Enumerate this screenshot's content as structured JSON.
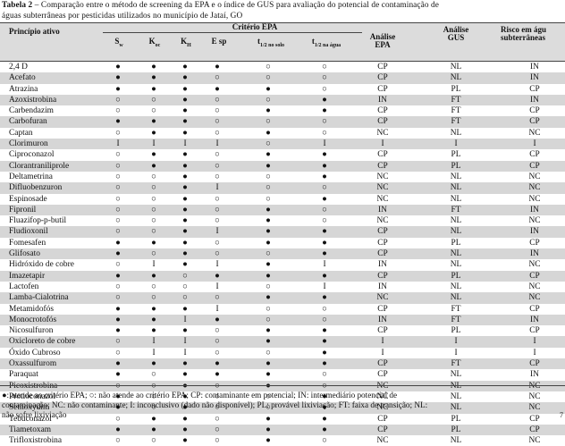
{
  "caption": {
    "label": "Tabela 2",
    "text": " – Comparação entre o método de screening da EPA e o índice de GUS para avaliação do potencial de contaminação de",
    "line2": "águas subterrâneas por pesticidas utilizados no município de Jataí, GO"
  },
  "header": {
    "col0": "Princípio ativo",
    "group": "Critério EPA",
    "sw": "S",
    "sw_sub": "w",
    "koc": "K",
    "koc_sub": "oc",
    "kh": "K",
    "kh_sub": "H",
    "esp": "E sp",
    "t_solo": "t",
    "t_solo_sub": "1/2 no solo",
    "t_agua": "t",
    "t_agua_sub": "1/2 na água",
    "analise_epa_1": "Análise",
    "analise_epa_2": "EPA",
    "analise_gus_1": "Análise",
    "analise_gus_2": "GUS",
    "risco_1": "Risco em águ",
    "risco_2": "subterrâneas"
  },
  "rows": [
    {
      "name": "2,4 D",
      "c": [
        "●",
        "●",
        "●",
        "●",
        "○",
        "○"
      ],
      "epa": "CP",
      "gus": "NL",
      "risco": "IN"
    },
    {
      "name": "Acefato",
      "c": [
        "●",
        "●",
        "●",
        "○",
        "○",
        "○"
      ],
      "epa": "CP",
      "gus": "NL",
      "risco": "IN"
    },
    {
      "name": "Atrazina",
      "c": [
        "●",
        "●",
        "●",
        "●",
        "●",
        "○"
      ],
      "epa": "CP",
      "gus": "PL",
      "risco": "CP"
    },
    {
      "name": "Azoxistrobina",
      "c": [
        "○",
        "○",
        "●",
        "○",
        "○",
        "●"
      ],
      "epa": "IN",
      "gus": "FT",
      "risco": "IN"
    },
    {
      "name": "Carbendazim",
      "c": [
        "○",
        "○",
        "●",
        "○",
        "●",
        "●"
      ],
      "epa": "CP",
      "gus": "FT",
      "risco": "CP"
    },
    {
      "name": "Carbofuran",
      "c": [
        "●",
        "●",
        "●",
        "○",
        "○",
        "○"
      ],
      "epa": "CP",
      "gus": "FT",
      "risco": "CP"
    },
    {
      "name": "Captan",
      "c": [
        "○",
        "●",
        "●",
        "○",
        "●",
        "○"
      ],
      "epa": "NC",
      "gus": "NL",
      "risco": "NC"
    },
    {
      "name": "Clorimuron",
      "c": [
        "I",
        "I",
        "I",
        "I",
        "○",
        "I"
      ],
      "epa": "I",
      "gus": "I",
      "risco": "I"
    },
    {
      "name": "Ciproconazol",
      "c": [
        "○",
        "●",
        "●",
        "○",
        "●",
        "●"
      ],
      "epa": "CP",
      "gus": "PL",
      "risco": "CP"
    },
    {
      "name": "Clorantraniliprole",
      "c": [
        "○",
        "●",
        "●",
        "○",
        "●",
        "●"
      ],
      "epa": "CP",
      "gus": "PL",
      "risco": "CP"
    },
    {
      "name": "Deltametrina",
      "c": [
        "○",
        "○",
        "●",
        "○",
        "○",
        "●"
      ],
      "epa": "NC",
      "gus": "NL",
      "risco": "NC"
    },
    {
      "name": "Difluobenzuron",
      "c": [
        "○",
        "○",
        "●",
        "I",
        "○",
        "○"
      ],
      "epa": "NC",
      "gus": "NL",
      "risco": "NC"
    },
    {
      "name": "Espinosade",
      "c": [
        "○",
        "○",
        "●",
        "○",
        "○",
        "●"
      ],
      "epa": "NC",
      "gus": "NL",
      "risco": "NC"
    },
    {
      "name": "Fipronil",
      "c": [
        "○",
        "○",
        "●",
        "○",
        "●",
        "○"
      ],
      "epa": "IN",
      "gus": "FT",
      "risco": "IN"
    },
    {
      "name": "Fluazifop-p-butil",
      "c": [
        "○",
        "○",
        "●",
        "○",
        "●",
        "○"
      ],
      "epa": "NC",
      "gus": "NL",
      "risco": "NC"
    },
    {
      "name": "Fludioxonil",
      "c": [
        "○",
        "○",
        "●",
        "I",
        "●",
        "●"
      ],
      "epa": "CP",
      "gus": "NL",
      "risco": "IN"
    },
    {
      "name": "Fomesafen",
      "c": [
        "●",
        "●",
        "●",
        "○",
        "●",
        "●"
      ],
      "epa": "CP",
      "gus": "PL",
      "risco": "CP"
    },
    {
      "name": "Glifosato",
      "c": [
        "●",
        "○",
        "●",
        "○",
        "○",
        "●"
      ],
      "epa": "CP",
      "gus": "NL",
      "risco": "IN"
    },
    {
      "name": "Hidróxido de cobre",
      "c": [
        "○",
        "I",
        "●",
        "I",
        "●",
        "I"
      ],
      "epa": "IN",
      "gus": "NL",
      "risco": "NC"
    },
    {
      "name": "Imazetapir",
      "c": [
        "●",
        "●",
        "○",
        "●",
        "●",
        "●"
      ],
      "epa": "CP",
      "gus": "PL",
      "risco": "CP"
    },
    {
      "name": "Lactofen",
      "c": [
        "○",
        "○",
        "○",
        "I",
        "○",
        "I"
      ],
      "epa": "IN",
      "gus": "NL",
      "risco": "NC"
    },
    {
      "name": "Lamba-Cialotrina",
      "c": [
        "○",
        "○",
        "○",
        "○",
        "●",
        "●"
      ],
      "epa": "NC",
      "gus": "NL",
      "risco": "NC"
    },
    {
      "name": "Metamidofós",
      "c": [
        "●",
        "●",
        "●",
        "I",
        "○",
        "○"
      ],
      "epa": "CP",
      "gus": "FT",
      "risco": "CP"
    },
    {
      "name": "Monocrotofós",
      "c": [
        "●",
        "●",
        "I",
        "●",
        "○",
        "○"
      ],
      "epa": "IN",
      "gus": "FT",
      "risco": "IN"
    },
    {
      "name": "Nicosulfuron",
      "c": [
        "●",
        "●",
        "●",
        "○",
        "●",
        "●"
      ],
      "epa": "CP",
      "gus": "PL",
      "risco": "CP"
    },
    {
      "name": "Oxicloreto de cobre",
      "c": [
        "○",
        "I",
        "I",
        "○",
        "●",
        "●"
      ],
      "epa": "I",
      "gus": "I",
      "risco": "I"
    },
    {
      "name": "Óxido Cubroso",
      "c": [
        "○",
        "I",
        "I",
        "○",
        "○",
        "●"
      ],
      "epa": "I",
      "gus": "I",
      "risco": "I"
    },
    {
      "name": "Oxassulfurom",
      "c": [
        "●",
        "●",
        "●",
        "●",
        "●",
        "●"
      ],
      "epa": "CP",
      "gus": "FT",
      "risco": "CP"
    },
    {
      "name": "Paraquat",
      "c": [
        "●",
        "○",
        "●",
        "●",
        "●",
        "○"
      ],
      "epa": "CP",
      "gus": "NL",
      "risco": "IN"
    },
    {
      "name": "Picoxistrobina",
      "c": [
        "○",
        "○",
        "●",
        "○",
        "●",
        "○"
      ],
      "epa": "NC",
      "gus": "NL",
      "risco": "NC"
    },
    {
      "name": "Protioconazol",
      "c": [
        "●",
        "○",
        "●",
        "○",
        "○",
        "●"
      ],
      "epa": "NC",
      "gus": "NL",
      "risco": "NC"
    },
    {
      "name": "Sethoxydim",
      "c": [
        "●",
        "○",
        "●",
        "○",
        "○",
        "●"
      ],
      "epa": "NC",
      "gus": "NL",
      "risco": "NC"
    },
    {
      "name": "Tebuconazol",
      "c": [
        "○",
        "●",
        "●",
        "○",
        "●",
        "●"
      ],
      "epa": "CP",
      "gus": "PL",
      "risco": "CP"
    },
    {
      "name": "Tiametoxam",
      "c": [
        "●",
        "●",
        "●",
        "○",
        "●",
        "●"
      ],
      "epa": "CP",
      "gus": "PL",
      "risco": "CP"
    },
    {
      "name": "Trifloxistrobina",
      "c": [
        "○",
        "○",
        "●",
        "○",
        "●",
        "○"
      ],
      "epa": "NC",
      "gus": "NL",
      "risco": "NC"
    }
  ],
  "footnote": {
    "line1": "●: atende ao critério EPA; ○: não atende ao critério EPA; CP: contaminante em potencial; IN: intermediário potencial de",
    "line2": "contaminação; NC: não contaminante; I: inconclusivo (dado não disponível); PL: provável lixiviação; FT: faixa de transição; NL:",
    "line3": "não sofre lixiviação"
  },
  "page_number": "7"
}
